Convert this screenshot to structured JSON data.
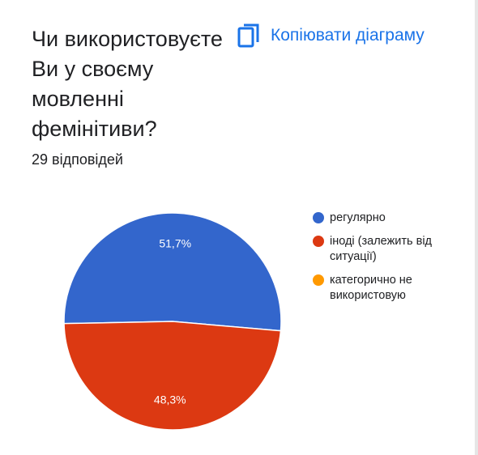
{
  "header": {
    "title": "Чи використовуєте Ви у своєму мовленні фемінітиви?",
    "copy_label": "Копіювати діаграму",
    "copy_icon": "copy-icon"
  },
  "summary": {
    "responses": "29 відповідей"
  },
  "colors": {
    "accent": "#1a73e8",
    "regularly": "#3366cc",
    "sometimes": "#dc3912",
    "never": "#ff9900"
  },
  "chart_data": {
    "type": "pie",
    "title": "Чи використовуєте Ви у своєму мовленні фемінітиви?",
    "categories": [
      "регулярно",
      "іноді (залежить від ситуації)",
      "категорично не використовую"
    ],
    "values": [
      51.7,
      48.3,
      0
    ],
    "value_labels": [
      "51,7%",
      "48,3%",
      ""
    ],
    "colors": [
      "#3366cc",
      "#dc3912",
      "#ff9900"
    ],
    "legend_position": "right"
  }
}
